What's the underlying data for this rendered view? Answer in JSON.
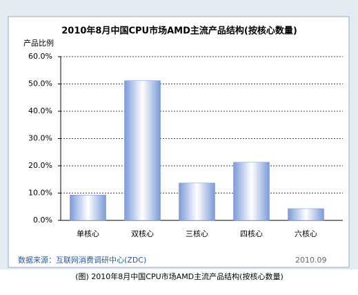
{
  "chart_data": {
    "type": "bar",
    "title": "2010年8月中国CPU市场AMD主流产品结构(按核心数量)",
    "ylabel": "产品比例",
    "categories": [
      "单核心",
      "双核心",
      "三核心",
      "四核心",
      "六核心"
    ],
    "values": [
      9.3,
      51.2,
      13.7,
      21.3,
      4.3
    ],
    "color": "#6f8fd0",
    "ylim": [
      0,
      60
    ],
    "yticks": [
      {
        "value": 0,
        "label": "0.0%"
      },
      {
        "value": 10,
        "label": "10.0%"
      },
      {
        "value": 20,
        "label": "20.0%"
      },
      {
        "value": 30,
        "label": "30.0%"
      },
      {
        "value": 40,
        "label": "40.0%"
      },
      {
        "value": 50,
        "label": "50.0%"
      },
      {
        "value": 60,
        "label": "60.0%"
      }
    ],
    "grid": true,
    "source": "数据来源：互联网消费调研中心(ZDC)",
    "date": "2010.09",
    "caption": "(图) 2010年8月中国CPU市场AMD主流产品结构(按核心数量)"
  }
}
